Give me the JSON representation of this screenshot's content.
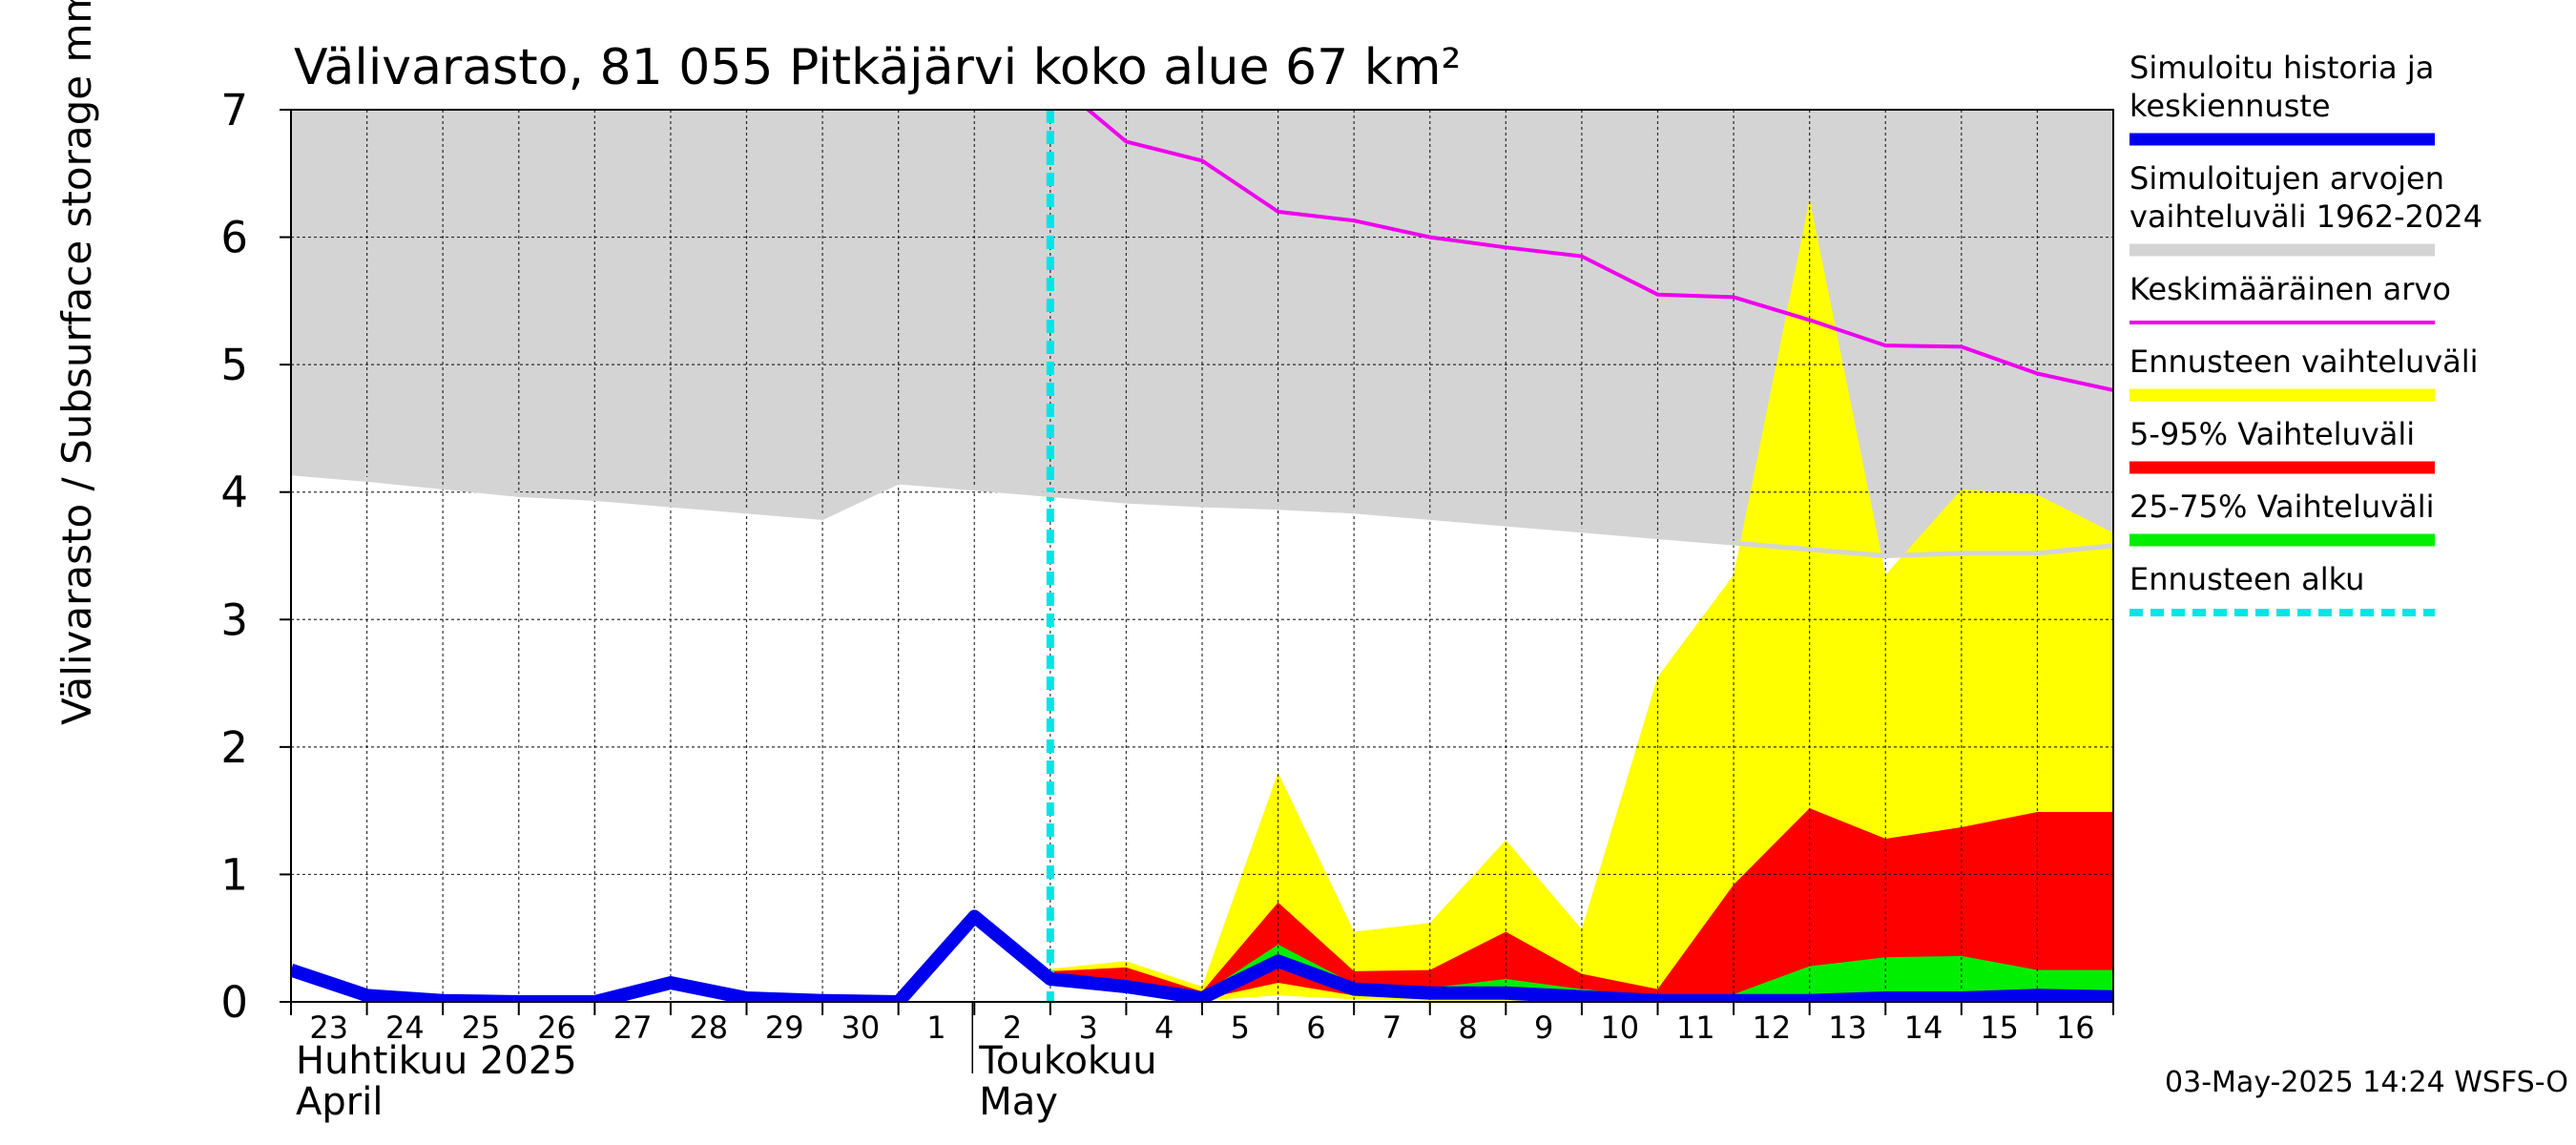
{
  "chart_data": {
    "type": "area",
    "title": "Välivarasto, 81 055 Pitkäjärvi koko alue 67 km²",
    "ylabel": "Välivarasto / Subsurface storage  mm",
    "ylim": [
      0,
      7
    ],
    "yticks": [
      "0",
      "1",
      "2",
      "3",
      "4",
      "5",
      "6",
      "7"
    ],
    "grid": true,
    "x_dates": [
      "2025-04-23",
      "2025-04-24",
      "2025-04-25",
      "2025-04-26",
      "2025-04-27",
      "2025-04-28",
      "2025-04-29",
      "2025-04-30",
      "2025-05-01",
      "2025-05-02",
      "2025-05-03",
      "2025-05-04",
      "2025-05-05",
      "2025-05-06",
      "2025-05-07",
      "2025-05-08",
      "2025-05-09",
      "2025-05-10",
      "2025-05-11",
      "2025-05-12",
      "2025-05-13",
      "2025-05-14",
      "2025-05-15",
      "2025-05-16",
      "2025-05-17"
    ],
    "day_labels": [
      "23",
      "24",
      "25",
      "26",
      "27",
      "28",
      "29",
      "30",
      "1",
      "2",
      "3",
      "4",
      "5",
      "6",
      "7",
      "8",
      "9",
      "10",
      "11",
      "12",
      "13",
      "14",
      "15",
      "16"
    ],
    "month_labels": [
      {
        "line1": "Huhtikuu  2025",
        "line2": "April",
        "start": "2025-04-23"
      },
      {
        "line1": "Toukokuu",
        "line2": "May",
        "start": "2025-05-02"
      }
    ],
    "forecast_start": "2025-05-03",
    "series": [
      {
        "name": "Simuloitujen arvojen vaihteluväli 1962-2024",
        "kind": "band",
        "color": "#d4d4d4",
        "x": [
          "2025-04-23",
          "2025-04-24",
          "2025-04-25",
          "2025-04-26",
          "2025-04-27",
          "2025-04-28",
          "2025-04-29",
          "2025-04-30",
          "2025-05-01",
          "2025-05-02",
          "2025-05-03",
          "2025-05-04",
          "2025-05-05",
          "2025-05-06",
          "2025-05-07",
          "2025-05-08",
          "2025-05-09",
          "2025-05-10",
          "2025-05-11",
          "2025-05-12",
          "2025-05-13",
          "2025-05-14",
          "2025-05-15",
          "2025-05-16",
          "2025-05-17"
        ],
        "lower": [
          4.15,
          4.1,
          4.04,
          3.98,
          3.95,
          3.9,
          3.85,
          3.8,
          4.08,
          4.03,
          3.98,
          3.93,
          3.9,
          3.88,
          3.85,
          3.8,
          3.75,
          3.7,
          3.65,
          3.6,
          3.55,
          3.5,
          3.52,
          3.52,
          3.58
        ],
        "upper": [
          7,
          7,
          7,
          7,
          7,
          7,
          7,
          7,
          7,
          7,
          7,
          7,
          7,
          7,
          7,
          7,
          7,
          7,
          7,
          7,
          7,
          7,
          7,
          7,
          7
        ]
      },
      {
        "name": "Ennusteen vaihteluväli",
        "kind": "band",
        "color": "#ffff00",
        "x": [
          "2025-05-03",
          "2025-05-04",
          "2025-05-05",
          "2025-05-06",
          "2025-05-07",
          "2025-05-08",
          "2025-05-09",
          "2025-05-10",
          "2025-05-11",
          "2025-05-12",
          "2025-05-13",
          "2025-05-14",
          "2025-05-15",
          "2025-05-16",
          "2025-05-17"
        ],
        "lower": [
          0.18,
          0.07,
          0.01,
          0.05,
          0.02,
          0.01,
          0.01,
          0.01,
          0,
          0,
          0,
          0,
          0,
          0,
          0
        ],
        "upper": [
          0.26,
          0.32,
          0.12,
          1.8,
          0.55,
          0.62,
          1.27,
          0.57,
          2.55,
          3.35,
          6.3,
          3.35,
          4.02,
          3.98,
          3.68
        ]
      },
      {
        "name": "5-95% Vaihteluväli",
        "kind": "band",
        "color": "#ff0000",
        "x": [
          "2025-05-03",
          "2025-05-04",
          "2025-05-05",
          "2025-05-06",
          "2025-05-07",
          "2025-05-08",
          "2025-05-09",
          "2025-05-10",
          "2025-05-11",
          "2025-05-12",
          "2025-05-13",
          "2025-05-14",
          "2025-05-15",
          "2025-05-16",
          "2025-05-17"
        ],
        "lower": [
          0.18,
          0.08,
          0.02,
          0.15,
          0.05,
          0.03,
          0.02,
          0.01,
          0.01,
          0,
          0,
          0,
          0,
          0,
          0
        ],
        "upper": [
          0.24,
          0.27,
          0.08,
          0.78,
          0.24,
          0.25,
          0.55,
          0.22,
          0.1,
          0.92,
          1.52,
          1.28,
          1.37,
          1.49,
          1.49
        ]
      },
      {
        "name": "25-75% Vaihteluväli",
        "kind": "band",
        "color": "#00ee00",
        "x": [
          "2025-05-03",
          "2025-05-04",
          "2025-05-05",
          "2025-05-06",
          "2025-05-07",
          "2025-05-08",
          "2025-05-09",
          "2025-05-10",
          "2025-05-11",
          "2025-05-12",
          "2025-05-13",
          "2025-05-14",
          "2025-05-15",
          "2025-05-16",
          "2025-05-17"
        ],
        "lower": [
          0.19,
          0.1,
          0.03,
          0.28,
          0.1,
          0.06,
          0.06,
          0.03,
          0.02,
          0.02,
          0.03,
          0.06,
          0.06,
          0.07,
          0.06
        ],
        "upper": [
          0.2,
          0.14,
          0.06,
          0.45,
          0.14,
          0.11,
          0.18,
          0.1,
          0.04,
          0.06,
          0.28,
          0.35,
          0.36,
          0.25,
          0.25
        ]
      },
      {
        "name": "Keskimääräinen arvo",
        "kind": "line",
        "color": "#ee00ee",
        "x": [
          "2025-05-03",
          "2025-05-04",
          "2025-05-05",
          "2025-05-06",
          "2025-05-07",
          "2025-05-08",
          "2025-05-09",
          "2025-05-10",
          "2025-05-11",
          "2025-05-12",
          "2025-05-13",
          "2025-05-14",
          "2025-05-15",
          "2025-05-16",
          "2025-05-17"
        ],
        "values": [
          7.25,
          6.75,
          6.6,
          6.2,
          6.13,
          6.0,
          5.92,
          5.85,
          5.55,
          5.53,
          5.35,
          5.15,
          5.14,
          4.93,
          4.8
        ]
      },
      {
        "name": "Simuloitu historia ja keskiennuste",
        "kind": "line",
        "color": "#0000ee",
        "x": [
          "2025-04-23",
          "2025-04-24",
          "2025-04-25",
          "2025-04-26",
          "2025-04-27",
          "2025-04-28",
          "2025-04-29",
          "2025-04-30",
          "2025-05-01",
          "2025-05-02",
          "2025-05-03",
          "2025-05-04",
          "2025-05-05",
          "2025-05-06",
          "2025-05-07",
          "2025-05-08",
          "2025-05-09",
          "2025-05-10",
          "2025-05-11",
          "2025-05-12",
          "2025-05-13",
          "2025-05-14",
          "2025-05-15",
          "2025-05-16",
          "2025-05-17"
        ],
        "values": [
          0.25,
          0.05,
          0.01,
          0,
          0,
          0.15,
          0.03,
          0.01,
          0,
          0.67,
          0.18,
          0.12,
          0.03,
          0.32,
          0.1,
          0.07,
          0.07,
          0.04,
          0.01,
          0.01,
          0.01,
          0.03,
          0.03,
          0.05,
          0.04
        ]
      }
    ],
    "legend": {
      "placement": "right",
      "entries": [
        {
          "text": [
            "Simuloitu historia ja",
            "keskiennuste"
          ],
          "color": "#0000ee",
          "style": "thick"
        },
        {
          "text": [
            "Simuloitujen arvojen",
            "vaihteluväli 1962-2024"
          ],
          "color": "#d4d4d4",
          "style": "thick"
        },
        {
          "text": [
            "Keskimääräinen arvo"
          ],
          "color": "#ee00ee",
          "style": "thin"
        },
        {
          "text": [
            "Ennusteen vaihteluväli"
          ],
          "color": "#ffff00",
          "style": "thick"
        },
        {
          "text": [
            "5-95% Vaihteluväli"
          ],
          "color": "#ff0000",
          "style": "thick"
        },
        {
          "text": [
            "25-75% Vaihteluväli"
          ],
          "color": "#00ee00",
          "style": "thick"
        },
        {
          "text": [
            "Ennusteen alku"
          ],
          "color": "#00e5e5",
          "style": "dashed"
        }
      ]
    },
    "footer": "03-May-2025 14:24 WSFS-O"
  }
}
